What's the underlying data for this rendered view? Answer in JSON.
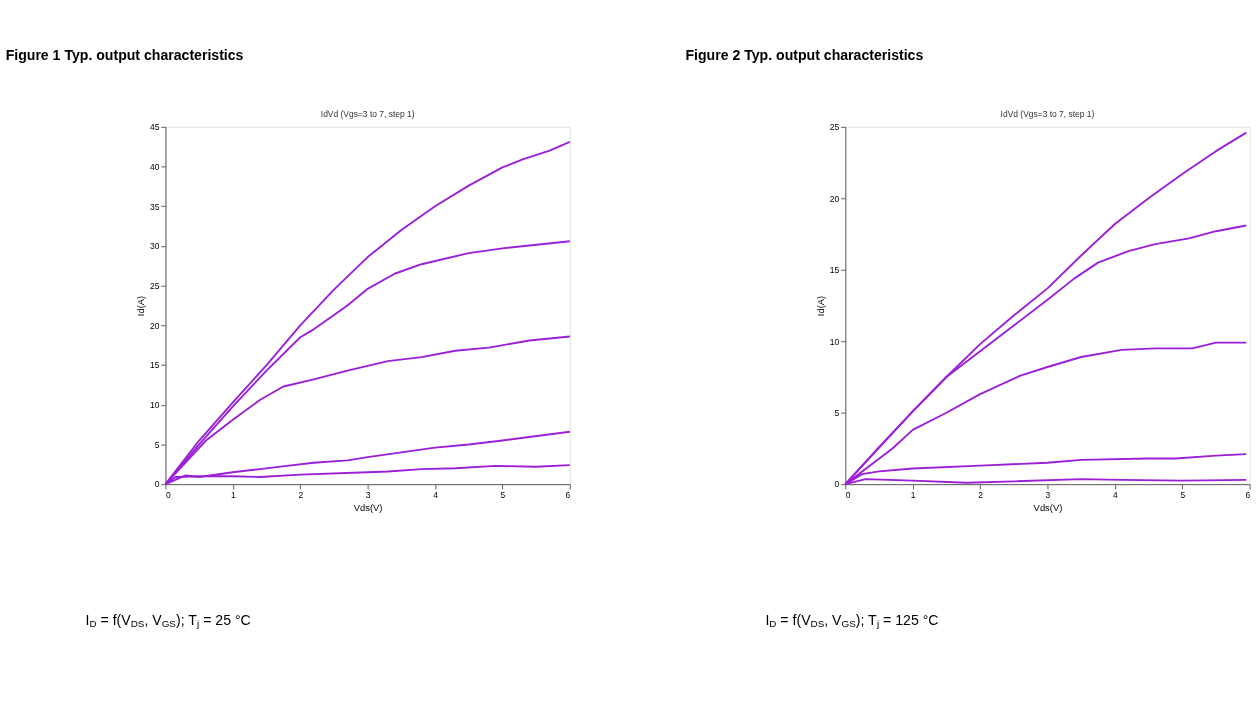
{
  "chart_data": [
    {
      "type": "line",
      "title": "Figure 1 Typ. output characteristics",
      "subtitle": "IdVd (Vgs=3 to 7, step 1)",
      "xlabel": "Vds(V)",
      "ylabel": "Id(A)",
      "xlim": [
        0,
        6
      ],
      "ylim": [
        0,
        45
      ],
      "xticks": [
        0,
        1,
        2,
        3,
        4,
        5,
        6
      ],
      "yticks": [
        0,
        5,
        10,
        15,
        20,
        25,
        30,
        35,
        40,
        45
      ],
      "grid": false,
      "legend": false,
      "marker": "none",
      "line_style": "solid",
      "annotations": [
        "I$_{D}$ = f(V$_{DS}$, V$_{GS}$); T$_{j}$ = 25 °C"
      ],
      "series": [
        {
          "color": "#9b1fd6",
          "x": [
            0,
            0.5,
            1,
            1.5,
            2,
            2.5,
            3,
            3.5,
            4,
            4.5,
            5,
            5.3,
            5.7,
            6
          ],
          "values": [
            0,
            5.5,
            10.3,
            15,
            20,
            24.5,
            28.6,
            32,
            35,
            37.6,
            39.9,
            40.9,
            42,
            43.1
          ]
        },
        {
          "color": "#9b1fd6",
          "x": [
            0,
            0.5,
            1,
            1.5,
            2,
            2.2,
            2.7,
            3,
            3.4,
            3.8,
            4.5,
            5,
            6
          ],
          "values": [
            0,
            5,
            9.8,
            14.3,
            18.5,
            19.5,
            22.5,
            24.6,
            26.5,
            27.7,
            29.1,
            29.7,
            30.6
          ]
        },
        {
          "color": "#9b1fd6",
          "x": [
            0,
            0.6,
            1,
            1.4,
            1.75,
            2.2,
            2.7,
            3.3,
            3.8,
            4.3,
            4.8,
            5.4,
            6
          ],
          "values": [
            0,
            5.5,
            8.1,
            10.6,
            12.3,
            13.2,
            14.3,
            15.5,
            16,
            16.8,
            17.2,
            18.1,
            18.6
          ]
        },
        {
          "color": "#9b1fd6",
          "x": [
            0,
            0.3,
            0.5,
            1,
            1.4,
            1.8,
            2.2,
            2.7,
            3,
            3.5,
            4,
            4.5,
            5,
            6
          ],
          "values": [
            0,
            1.1,
            0.9,
            1.5,
            1.9,
            2.3,
            2.7,
            3,
            3.4,
            4,
            4.6,
            5,
            5.5,
            6.6
          ]
        },
        {
          "color": "#9b1fd6",
          "x": [
            0,
            0.15,
            0.5,
            1,
            1.4,
            2,
            3,
            3.3,
            3.8,
            4.3,
            4.9,
            5.5,
            6
          ],
          "values": [
            0,
            0.9,
            1,
            1,
            0.9,
            1.2,
            1.5,
            1.6,
            1.9,
            2,
            2.3,
            2.2,
            2.4
          ]
        }
      ]
    },
    {
      "type": "line",
      "title": "Figure 2 Typ. output characteristics",
      "subtitle": "IdVd (Vgs=3 to 7, step 1)",
      "xlabel": "Vds(V)",
      "ylabel": "Id(A)",
      "xlim": [
        0,
        6
      ],
      "ylim": [
        0,
        25
      ],
      "xticks": [
        0,
        1,
        2,
        3,
        4,
        5,
        6
      ],
      "yticks": [
        0,
        5,
        10,
        15,
        20,
        25
      ],
      "grid": false,
      "legend": false,
      "marker": "none",
      "line_style": "solid",
      "annotations": [
        "I$_{D}$ = f(V$_{DS}$, V$_{GS}$); T$_{j}$ = 125 °C"
      ],
      "series": [
        {
          "color": "#9b1fd6",
          "x": [
            0,
            0.5,
            1,
            1.5,
            2,
            2.5,
            3,
            3.5,
            4,
            4.5,
            5,
            5.5,
            5.95
          ],
          "values": [
            0,
            2.6,
            5.1,
            7.5,
            9.8,
            11.8,
            13.7,
            16,
            18.2,
            20,
            21.7,
            23.3,
            24.6
          ]
        },
        {
          "color": "#9b1fd6",
          "x": [
            0,
            1,
            1.5,
            2,
            2.5,
            3,
            3.4,
            3.75,
            4.2,
            4.6,
            5.1,
            5.5,
            5.95
          ],
          "values": [
            0,
            5.1,
            7.5,
            9.3,
            11.1,
            12.9,
            14.4,
            15.5,
            16.3,
            16.8,
            17.2,
            17.7,
            18.1
          ]
        },
        {
          "color": "#9b1fd6",
          "x": [
            0,
            0.7,
            1,
            1.5,
            2,
            2.6,
            3,
            3.5,
            4.1,
            4.6,
            5.15,
            5.5,
            5.95
          ],
          "values": [
            0,
            2.5,
            3.8,
            5,
            6.3,
            7.6,
            8.2,
            8.9,
            9.4,
            9.5,
            9.5,
            9.9,
            9.9
          ]
        },
        {
          "color": "#9b1fd6",
          "x": [
            0,
            0.25,
            0.5,
            1,
            2,
            3,
            3.5,
            4.5,
            4.9,
            5.5,
            5.95
          ],
          "values": [
            0,
            0.7,
            0.9,
            1.1,
            1.3,
            1.5,
            1.7,
            1.8,
            1.8,
            2,
            2.1
          ]
        },
        {
          "color": "#9b1fd6",
          "x": [
            0,
            0.3,
            1,
            1.8,
            2.5,
            3.5,
            4.1,
            5,
            5.95
          ],
          "values": [
            0,
            0.35,
            0.25,
            0.1,
            0.2,
            0.35,
            0.3,
            0.25,
            0.3
          ]
        }
      ]
    }
  ]
}
